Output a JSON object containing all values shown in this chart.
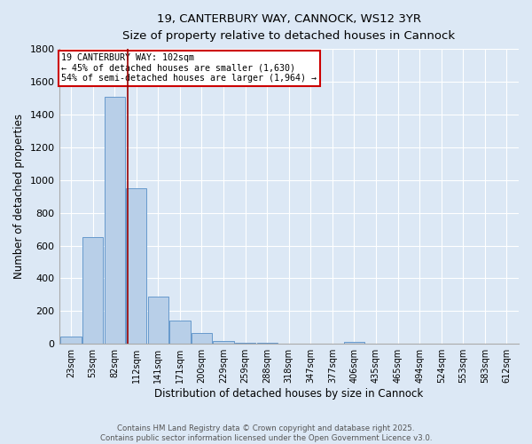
{
  "title_line1": "19, CANTERBURY WAY, CANNOCK, WS12 3YR",
  "title_line2": "Size of property relative to detached houses in Cannock",
  "xlabel": "Distribution of detached houses by size in Cannock",
  "ylabel": "Number of detached properties",
  "bar_categories": [
    "23sqm",
    "53sqm",
    "82sqm",
    "112sqm",
    "141sqm",
    "171sqm",
    "200sqm",
    "229sqm",
    "259sqm",
    "288sqm",
    "318sqm",
    "347sqm",
    "377sqm",
    "406sqm",
    "435sqm",
    "465sqm",
    "494sqm",
    "524sqm",
    "553sqm",
    "583sqm",
    "612sqm"
  ],
  "bar_values": [
    45,
    650,
    1510,
    950,
    290,
    140,
    65,
    20,
    8,
    4,
    2,
    1,
    1,
    10,
    0,
    0,
    0,
    0,
    0,
    0,
    0
  ],
  "bar_color": "#b8cfe8",
  "bar_edge_color": "#6699cc",
  "vline_color": "#990000",
  "annotation_text": "19 CANTERBURY WAY: 102sqm\n← 45% of detached houses are smaller (1,630)\n54% of semi-detached houses are larger (1,964) →",
  "annotation_box_color": "#ffffff",
  "annotation_box_edge_color": "#cc0000",
  "bg_color": "#dce8f5",
  "plot_bg_color": "#dce8f5",
  "grid_color": "#ffffff",
  "ylim": [
    0,
    1800
  ],
  "yticks": [
    0,
    200,
    400,
    600,
    800,
    1000,
    1200,
    1400,
    1600,
    1800
  ],
  "footer_line1": "Contains HM Land Registry data © Crown copyright and database right 2025.",
  "footer_line2": "Contains public sector information licensed under the Open Government Licence v3.0."
}
